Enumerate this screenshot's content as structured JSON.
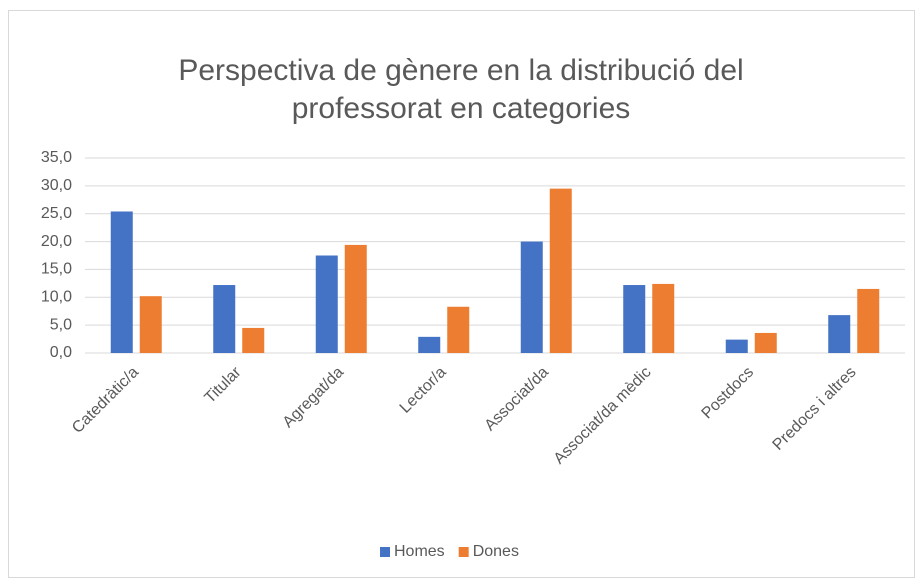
{
  "chart_data": {
    "type": "bar",
    "title": [
      "Perspectiva de gènere en la distribució del",
      "professorat en categories"
    ],
    "categories": [
      "Catedràtic/a",
      "Titular",
      "Agregat/da",
      "Lector/a",
      "Associat/da",
      "Associat/da mèdic",
      "Postdocs",
      "Predocs i altres"
    ],
    "series": [
      {
        "name": "Homes",
        "color": "#4472c4",
        "values": [
          25.4,
          12.2,
          17.5,
          2.9,
          20.0,
          12.2,
          2.4,
          6.8
        ]
      },
      {
        "name": "Dones",
        "color": "#ed7d31",
        "values": [
          10.2,
          4.5,
          19.4,
          8.3,
          29.5,
          12.4,
          3.6,
          11.5
        ]
      }
    ],
    "ylim": [
      0,
      35
    ],
    "yticks": [
      {
        "value": 0,
        "label": "0,0"
      },
      {
        "value": 5,
        "label": "5,0"
      },
      {
        "value": 10,
        "label": "10,0"
      },
      {
        "value": 15,
        "label": "15,0"
      },
      {
        "value": 20,
        "label": "20,0"
      },
      {
        "value": 25,
        "label": "25,0"
      },
      {
        "value": 30,
        "label": "30,0"
      },
      {
        "value": 35,
        "label": "35,0"
      }
    ],
    "grid": true,
    "legend": "bottom"
  }
}
